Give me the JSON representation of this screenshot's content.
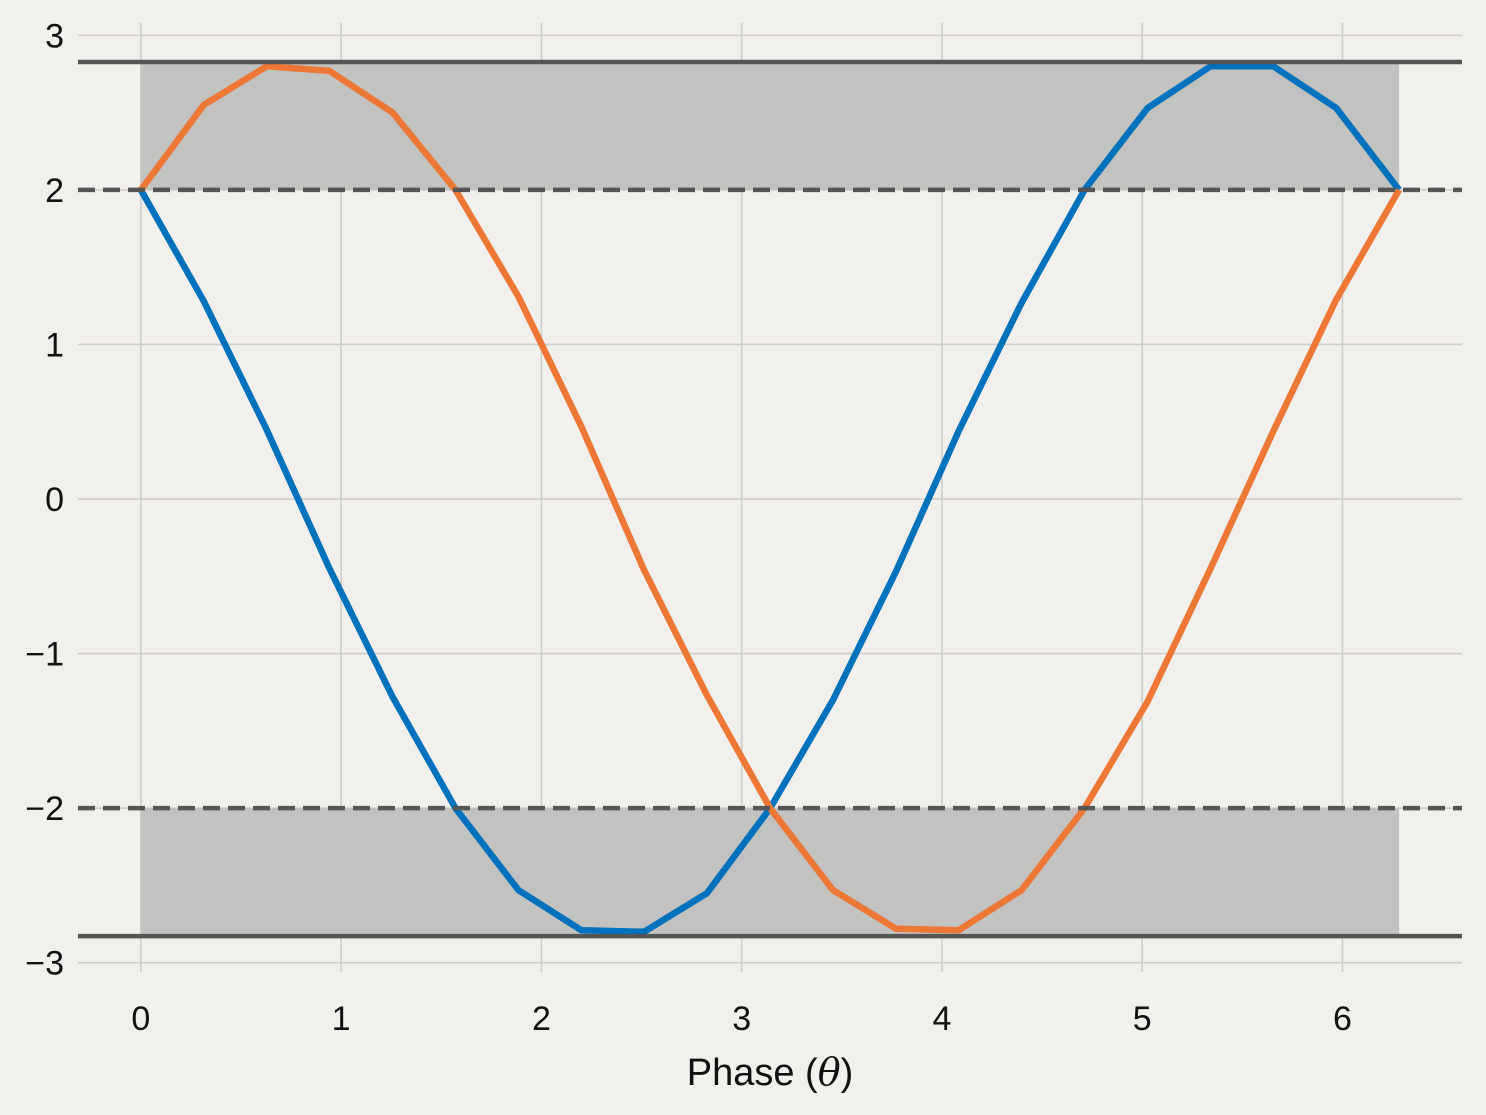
{
  "chart_data": {
    "type": "line",
    "title": "",
    "xlabel": {
      "prefix": "Phase (",
      "symbol": "θ",
      "suffix": ")"
    },
    "ylabel": "",
    "xlim": [
      -0.314,
      6.597
    ],
    "ylim": [
      -3.06,
      3.08
    ],
    "xticks": [
      0,
      1,
      2,
      3,
      4,
      5,
      6
    ],
    "yticks": [
      -3,
      -2,
      -1,
      0,
      1,
      2,
      3
    ],
    "xtick_labels": [
      "0",
      "1",
      "2",
      "3",
      "4",
      "5",
      "6"
    ],
    "ytick_labels": [
      "−3",
      "−2",
      "−1",
      "0",
      "1",
      "2",
      "3"
    ],
    "grid": true,
    "reference_lines": {
      "solid": [
        2.828,
        -2.828
      ],
      "dashed": [
        2.0,
        -2.0
      ]
    },
    "shaded_bands": [
      {
        "x": [
          0,
          6.283
        ],
        "y": [
          2.0,
          2.828
        ]
      },
      {
        "x": [
          -0.0,
          6.283
        ],
        "y": [
          -2.828,
          -2.0
        ]
      }
    ],
    "x": [
      0.0,
      0.314,
      0.628,
      0.942,
      1.257,
      1.571,
      1.885,
      2.199,
      2.513,
      2.827,
      3.142,
      3.456,
      3.77,
      4.084,
      4.398,
      4.712,
      5.027,
      5.341,
      5.655,
      5.969,
      6.283
    ],
    "series": [
      {
        "color": "#0072bd",
        "values": [
          2.0,
          1.28,
          0.45,
          -0.45,
          -1.28,
          -2.0,
          -2.53,
          -2.79,
          -2.8,
          -2.55,
          -2.0,
          -1.3,
          -0.47,
          0.44,
          1.27,
          2.0,
          2.53,
          2.8,
          2.8,
          2.53,
          2.0
        ]
      },
      {
        "color": "#ed7734",
        "values": [
          2.0,
          2.55,
          2.8,
          2.77,
          2.5,
          2.0,
          1.31,
          0.47,
          -0.46,
          -1.27,
          -2.0,
          -2.53,
          -2.78,
          -2.79,
          -2.53,
          -2.0,
          -1.31,
          -0.45,
          0.44,
          1.29,
          2.0
        ]
      }
    ],
    "colors": {
      "background": "#f2f0ed",
      "grid": "#cfcdca",
      "band": "#c2c2c0",
      "reference": "#555555"
    }
  }
}
